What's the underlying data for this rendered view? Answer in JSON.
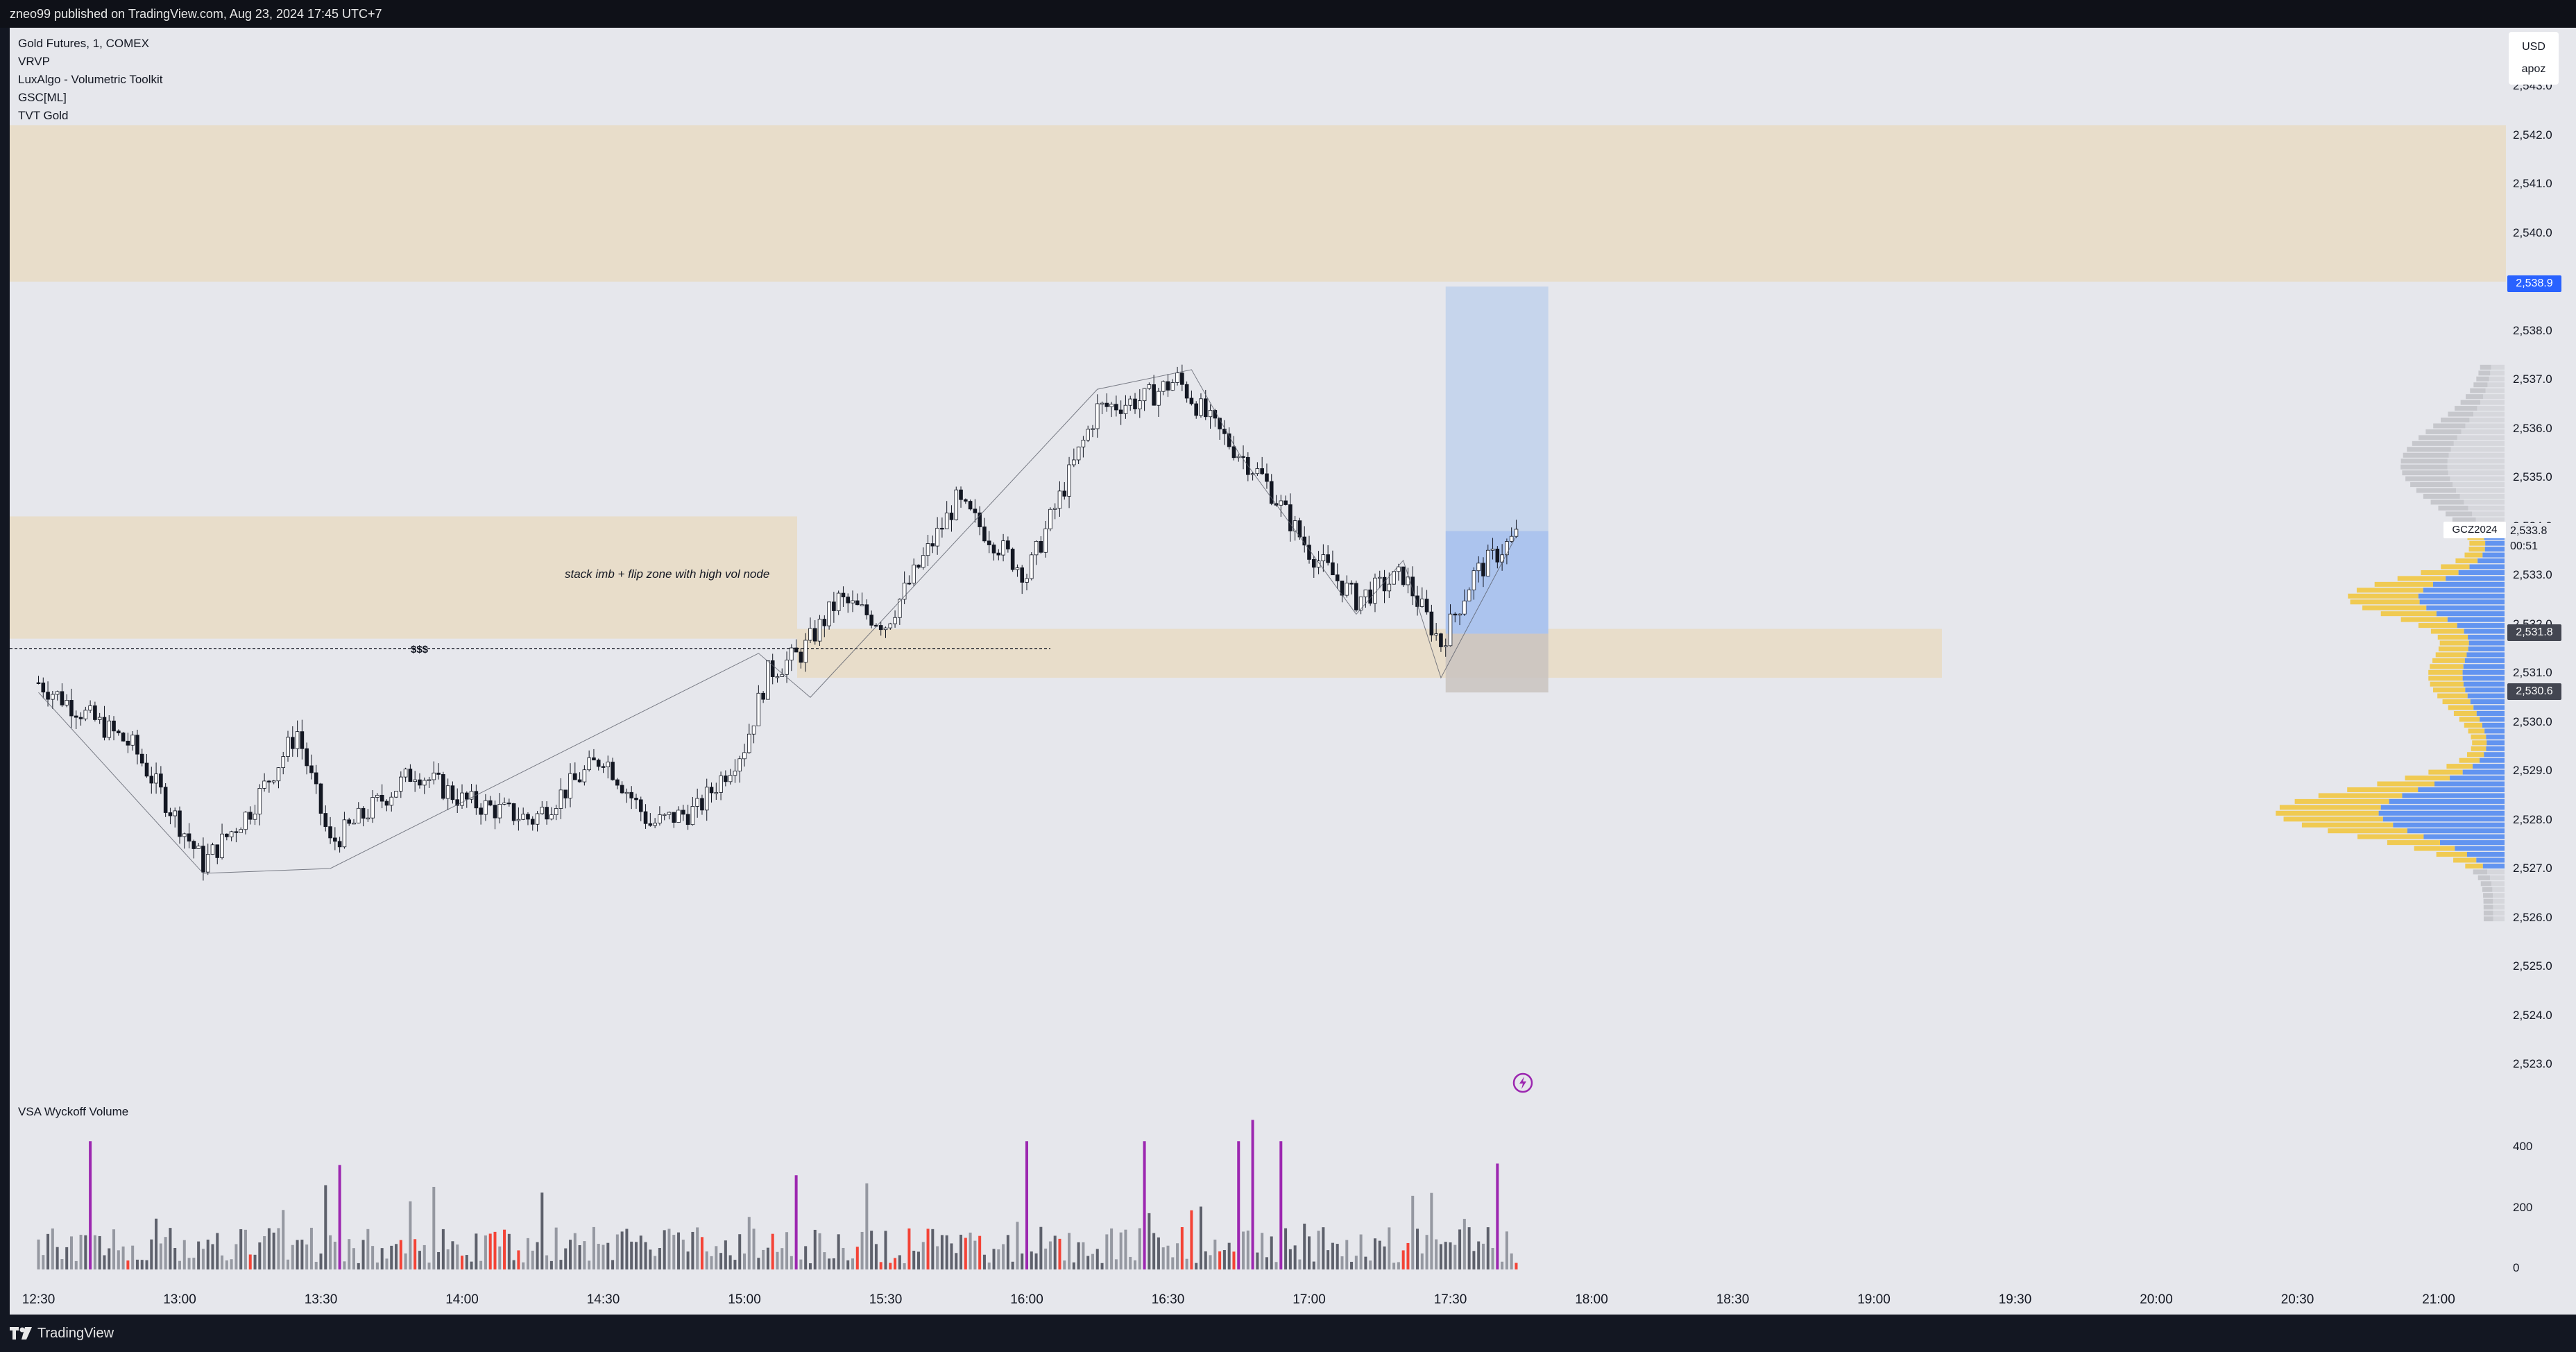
{
  "header": {
    "published_text": "zneo99 published on TradingView.com, Aug 23, 2024 17:45 UTC+7"
  },
  "legend": {
    "symbol": "Gold Futures, 1, COMEX",
    "indicators": [
      "VRVP",
      "LuxAlgo - Volumetric Toolkit",
      "GSC[ML]",
      "TVT Gold"
    ]
  },
  "annotations": {
    "zone_note": "stack imb + flip zone with high vol node",
    "liquidity_label": "$$$"
  },
  "volume_pane": {
    "title": "VSA Wyckoff Volume",
    "ticks": [
      "400",
      "200",
      "0"
    ]
  },
  "price_axis": {
    "currency": "USD",
    "scale_label": "apoz",
    "ticks": [
      "2,543.0",
      "2,542.0",
      "2,541.0",
      "2,540.0",
      "2,539.0",
      "2,538.0",
      "2,537.0",
      "2,536.0",
      "2,535.0",
      "2,534.0",
      "2,533.0",
      "2,532.0",
      "2,531.0",
      "2,530.0",
      "2,529.0",
      "2,528.0",
      "2,527.0",
      "2,526.0",
      "2,525.0",
      "2,524.0",
      "2,523.0"
    ],
    "badges": {
      "target": "2,538.9",
      "last_symbol": "GCZ2024",
      "last_price": "2,533.8",
      "countdown": "00:51",
      "entry": "2,531.8",
      "stop": "2,530.6"
    }
  },
  "time_axis": {
    "ticks": [
      "12:30",
      "13:00",
      "13:30",
      "14:00",
      "14:30",
      "15:00",
      "15:30",
      "16:00",
      "16:30",
      "17:00",
      "17:30",
      "18:00",
      "18:30",
      "19:00",
      "19:30",
      "20:00",
      "20:30",
      "21:00"
    ]
  },
  "footer": {
    "brand": "TradingView"
  },
  "icons": {
    "brand_logo": "tradingview-logo-icon",
    "alert": "lightning-icon"
  },
  "colors": {
    "bg": "#e6e7ec",
    "zone": "#e8dcc6",
    "long_target": "#c4d4ec",
    "long_stop": "#c9c3c0",
    "vp_blue": "#5b8ff0",
    "vp_yellow": "#f0c84a",
    "vol_purple": "#9c27b0",
    "vol_red": "#f44336",
    "badge_blue": "#2962ff",
    "badge_dark": "#434651"
  }
}
